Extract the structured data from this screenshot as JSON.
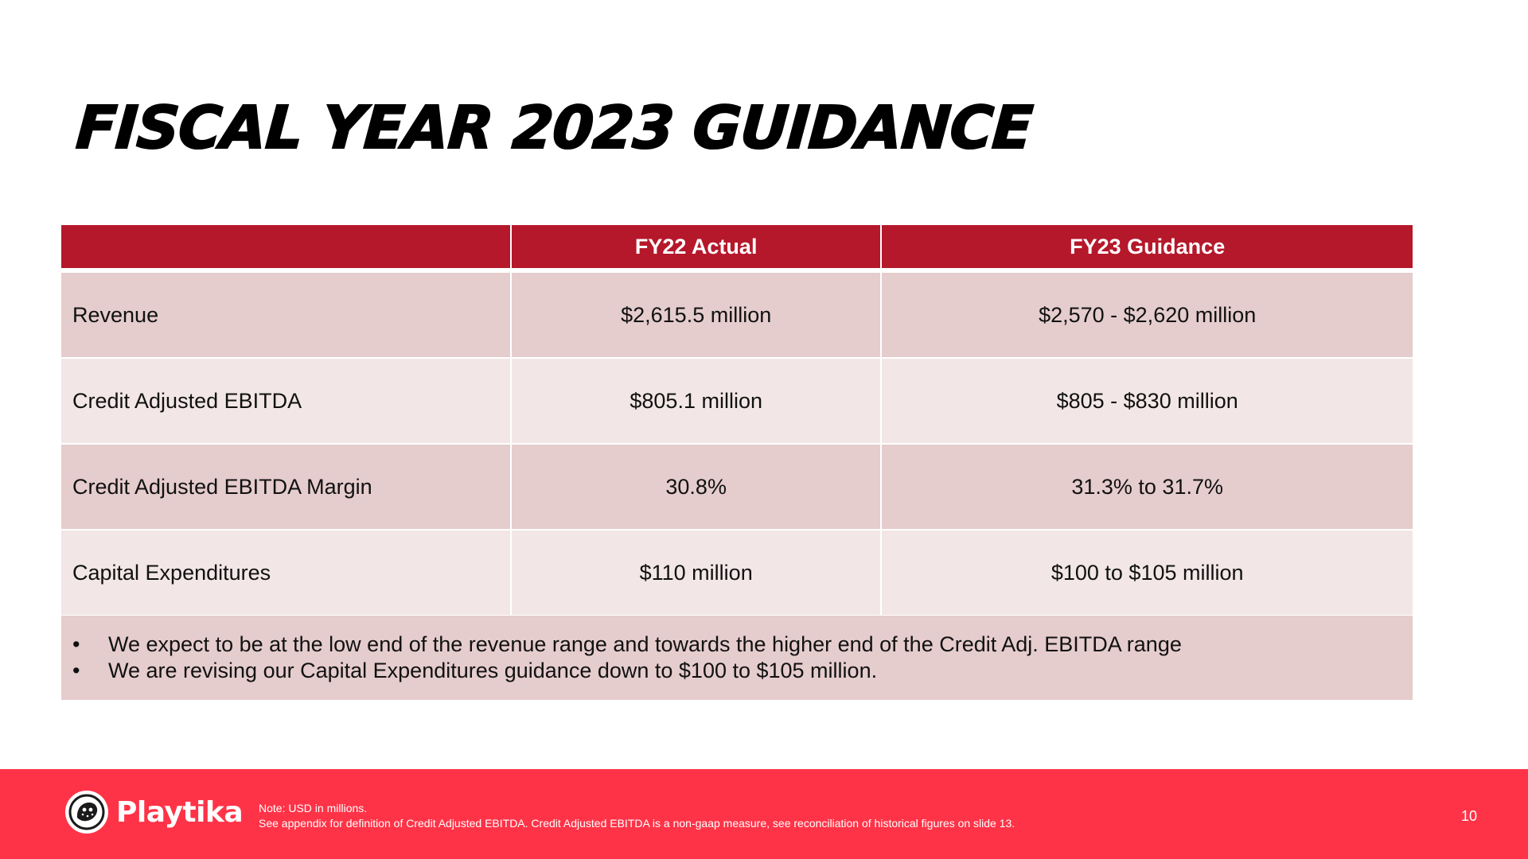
{
  "slide": {
    "title": "FISCAL YEAR 2023 GUIDANCE",
    "page_number": "10"
  },
  "table": {
    "headers": [
      "",
      "FY22 Actual",
      "FY23 Guidance"
    ],
    "rows": [
      {
        "metric": "Revenue",
        "fy22_actual": "$2,615.5 million",
        "fy23_guidance": "$2,570 - $2,620 million"
      },
      {
        "metric": "Credit Adjusted EBITDA",
        "fy22_actual": "$805.1 million",
        "fy23_guidance": "$805 - $830 million"
      },
      {
        "metric": "Credit Adjusted EBITDA Margin",
        "fy22_actual": "30.8%",
        "fy23_guidance": "31.3% to 31.7%"
      },
      {
        "metric": "Capital Expenditures",
        "fy22_actual": "$110 million",
        "fy23_guidance": "$100 to $105 million"
      }
    ]
  },
  "notes": {
    "bullet": "•",
    "items": [
      "We expect to be at the low end of the revenue range and towards the higher end of the Credit Adj. EBITDA range",
      "We are revising our Capital Expenditures guidance down to $100 to $105 million."
    ]
  },
  "footer": {
    "logo_text": "Playtika",
    "note_line1": "Note:  USD in millions.",
    "note_line2": "See appendix for definition of Credit Adjusted EBITDA. Credit Adjusted EBITDA is a non-gaap measure, see reconciliation of historical figures on slide 13.",
    "icon": "cheetah-logo-icon"
  },
  "colors": {
    "header_red": "#b5182b",
    "footer_red": "#ff3347",
    "row_dark": "#e5cccd",
    "row_light": "#f2e6e6"
  }
}
